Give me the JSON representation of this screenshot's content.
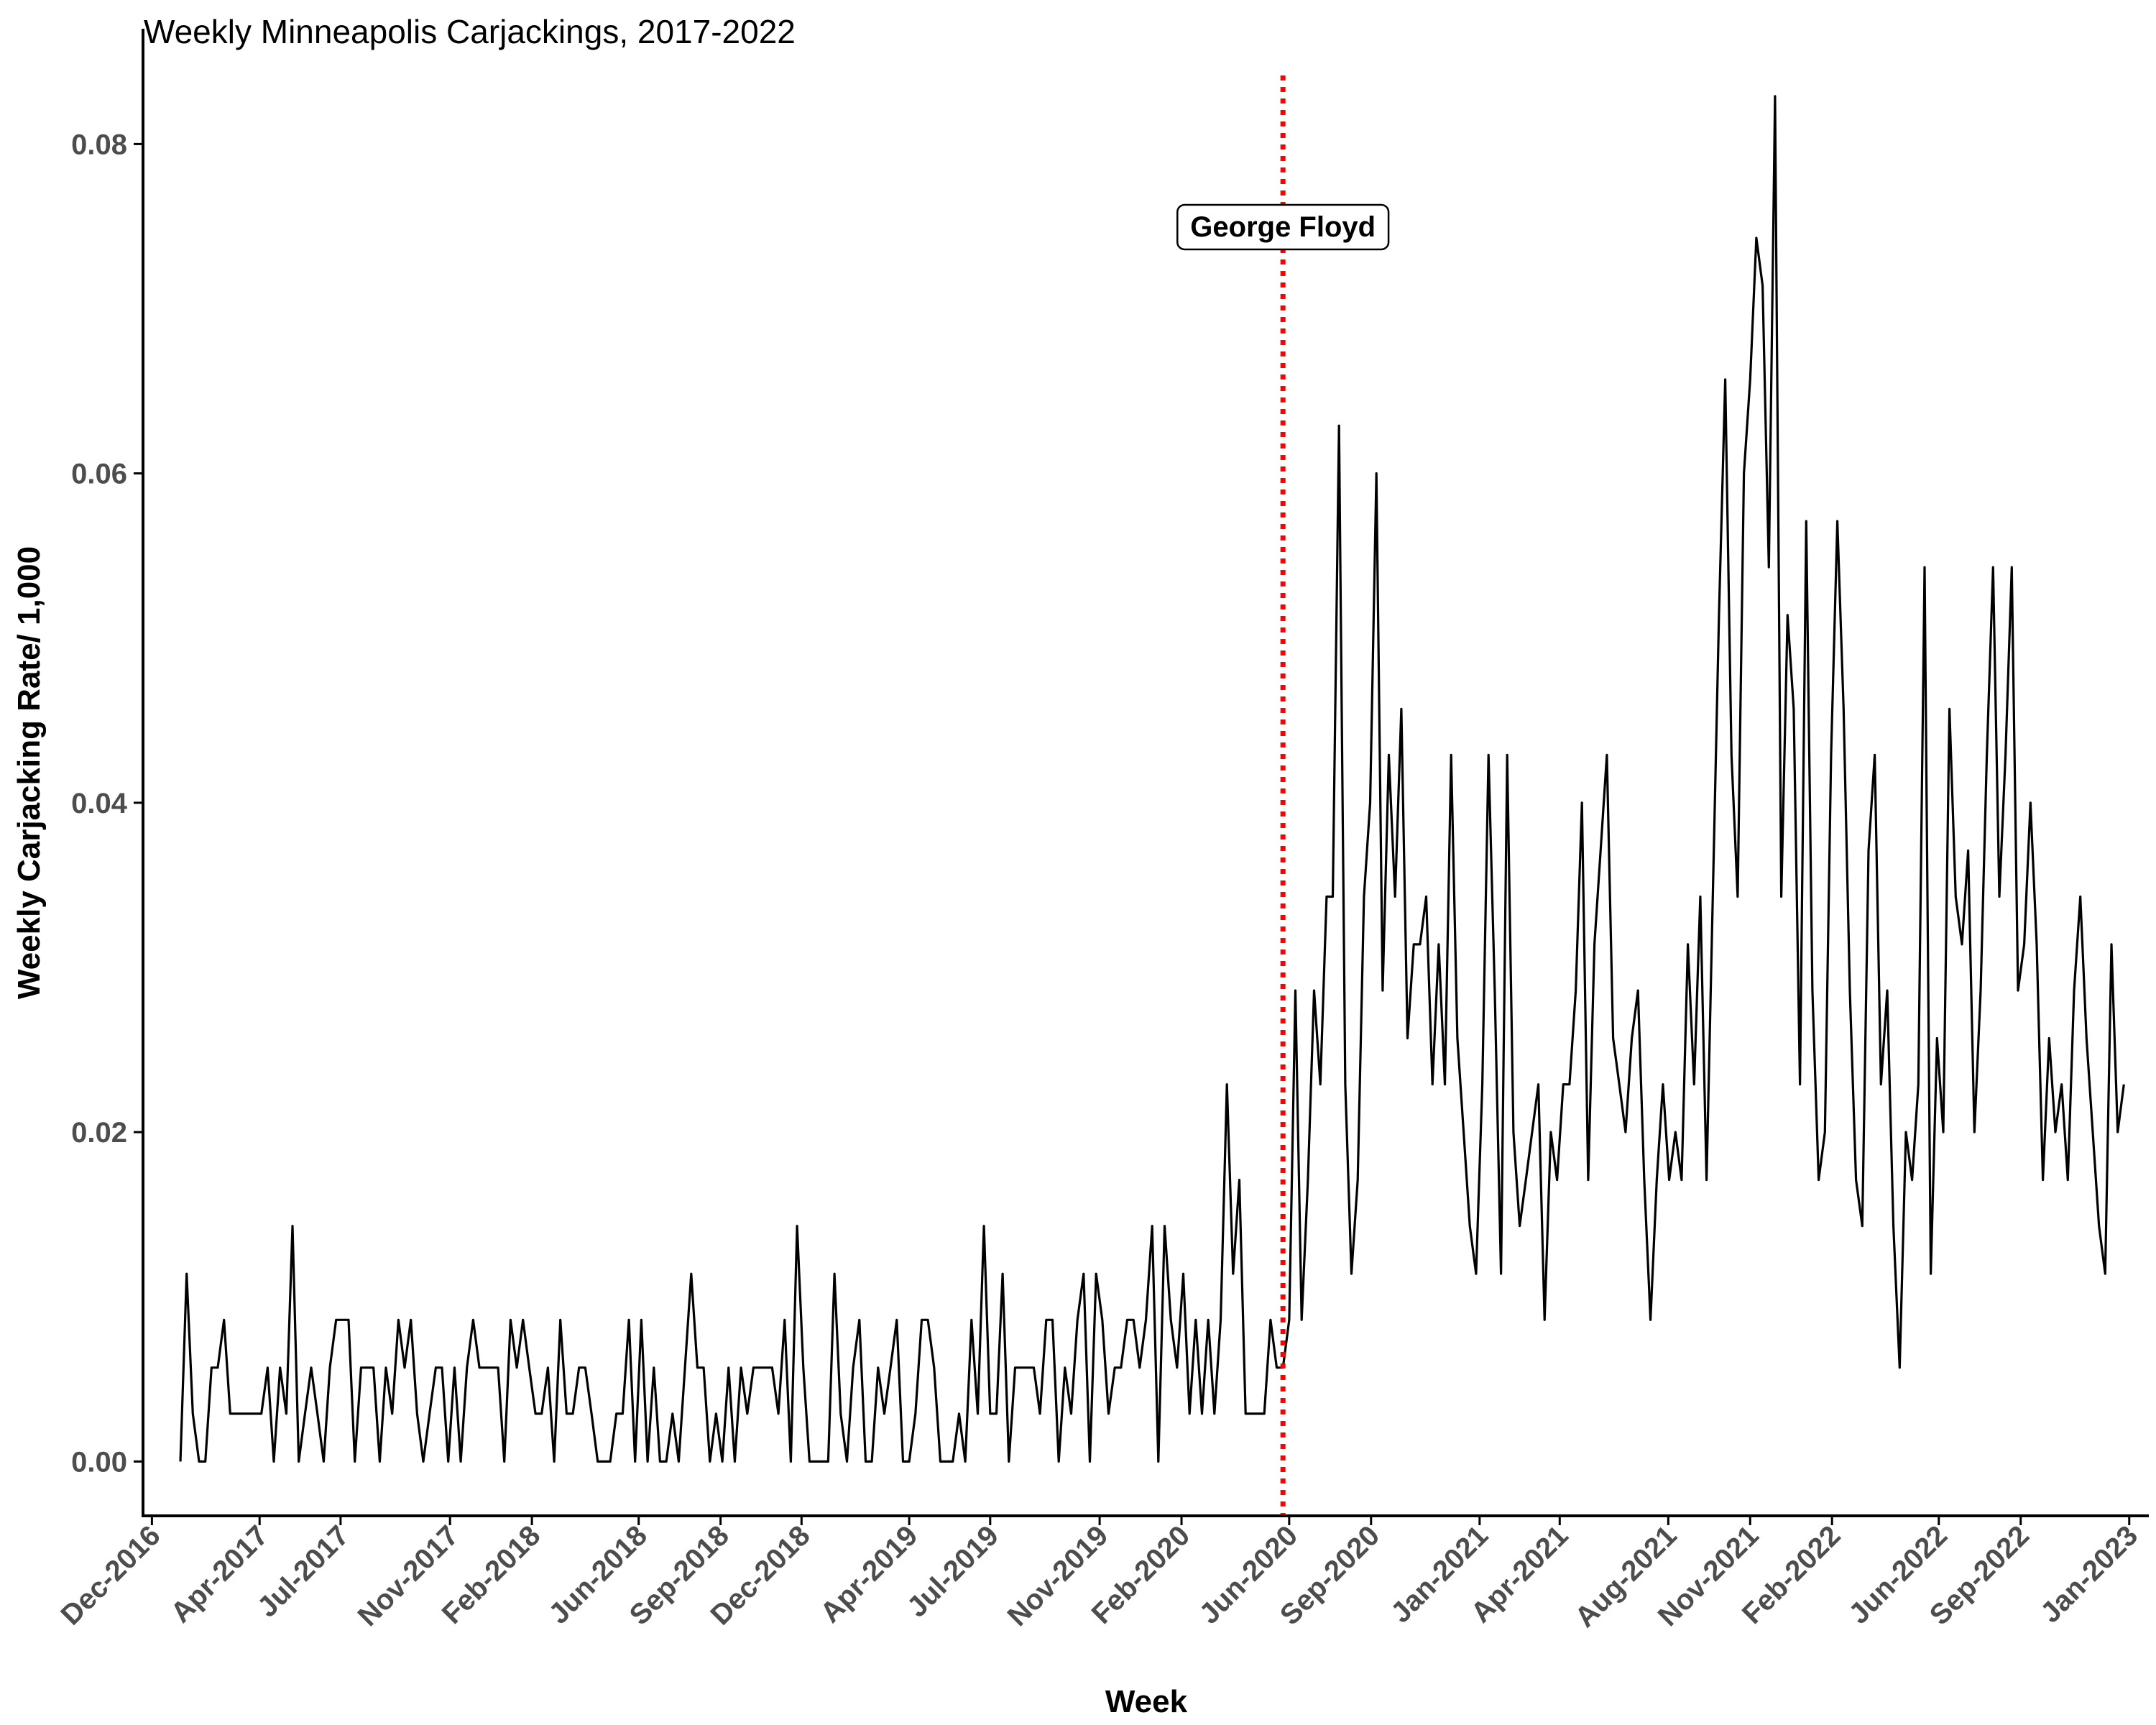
{
  "chart_data": {
    "type": "line",
    "title": "Weekly Minneapolis Carjackings, 2017-2022",
    "xlabel": "Week",
    "ylabel": "Weekly Carjacking Rate/ 1,000",
    "x_range": [
      "2016-11-21",
      "2023-01-23"
    ],
    "ylim": [
      -0.0033,
      0.087
    ],
    "y_ticks": [
      0.0,
      0.02,
      0.04,
      0.06,
      0.08
    ],
    "y_tick_labels": [
      "0.00",
      "0.02",
      "0.04",
      "0.06",
      "0.08"
    ],
    "x_ticks": [
      {
        "date": "2016-12-01",
        "label": "Dec-2016"
      },
      {
        "date": "2017-04-01",
        "label": "Apr-2017"
      },
      {
        "date": "2017-07-01",
        "label": "Jul-2017"
      },
      {
        "date": "2017-11-01",
        "label": "Nov-2017"
      },
      {
        "date": "2018-02-01",
        "label": "Feb-2018"
      },
      {
        "date": "2018-06-01",
        "label": "Jun-2018"
      },
      {
        "date": "2018-09-01",
        "label": "Sep-2018"
      },
      {
        "date": "2018-12-01",
        "label": "Dec-2018"
      },
      {
        "date": "2019-04-01",
        "label": "Apr-2019"
      },
      {
        "date": "2019-07-01",
        "label": "Jul-2019"
      },
      {
        "date": "2019-11-01",
        "label": "Nov-2019"
      },
      {
        "date": "2020-02-01",
        "label": "Feb-2020"
      },
      {
        "date": "2020-06-01",
        "label": "Jun-2020"
      },
      {
        "date": "2020-09-01",
        "label": "Sep-2020"
      },
      {
        "date": "2021-01-01",
        "label": "Jan-2021"
      },
      {
        "date": "2021-04-01",
        "label": "Apr-2021"
      },
      {
        "date": "2021-08-01",
        "label": "Aug-2021"
      },
      {
        "date": "2021-11-01",
        "label": "Nov-2021"
      },
      {
        "date": "2022-02-01",
        "label": "Feb-2022"
      },
      {
        "date": "2022-06-01",
        "label": "Jun-2022"
      },
      {
        "date": "2022-09-01",
        "label": "Sep-2022"
      },
      {
        "date": "2023-01-01",
        "label": "Jan-2023"
      }
    ],
    "grid": false,
    "legend": "none",
    "series": [
      {
        "color": "#000000",
        "start_date": "2017-01-02",
        "interval_days": 7,
        "values": [
          0.0,
          0.0114,
          0.0029,
          0.0,
          0.0,
          0.0057,
          0.0057,
          0.0086,
          0.0029,
          0.0029,
          0.0029,
          0.0029,
          0.0029,
          0.0029,
          0.0057,
          0.0,
          0.0057,
          0.0029,
          0.0143,
          0.0,
          0.0029,
          0.0057,
          0.0029,
          0.0,
          0.0057,
          0.0086,
          0.0086,
          0.0086,
          0.0,
          0.0057,
          0.0057,
          0.0057,
          0.0,
          0.0057,
          0.0029,
          0.0086,
          0.0057,
          0.0086,
          0.0029,
          0.0,
          0.0029,
          0.0057,
          0.0057,
          0.0,
          0.0057,
          0.0,
          0.0057,
          0.0086,
          0.0057,
          0.0057,
          0.0057,
          0.0057,
          0.0,
          0.0086,
          0.0057,
          0.0086,
          0.0057,
          0.0029,
          0.0029,
          0.0057,
          0.0,
          0.0086,
          0.0029,
          0.0029,
          0.0057,
          0.0057,
          0.0029,
          0.0,
          0.0,
          0.0,
          0.0029,
          0.0029,
          0.0086,
          0.0,
          0.0086,
          0.0,
          0.0057,
          0.0,
          0.0,
          0.0029,
          0.0,
          0.0057,
          0.0114,
          0.0057,
          0.0057,
          0.0,
          0.0029,
          0.0,
          0.0057,
          0.0,
          0.0057,
          0.0029,
          0.0057,
          0.0057,
          0.0057,
          0.0057,
          0.0029,
          0.0086,
          0.0,
          0.0143,
          0.0057,
          0.0,
          0.0,
          0.0,
          0.0,
          0.0114,
          0.0029,
          0.0,
          0.0057,
          0.0086,
          0.0,
          0.0,
          0.0057,
          0.0029,
          0.0057,
          0.0086,
          0.0,
          0.0,
          0.0029,
          0.0086,
          0.0086,
          0.0057,
          0.0,
          0.0,
          0.0,
          0.0029,
          0.0,
          0.0086,
          0.0029,
          0.0143,
          0.0029,
          0.0029,
          0.0114,
          0.0,
          0.0057,
          0.0057,
          0.0057,
          0.0057,
          0.0029,
          0.0086,
          0.0086,
          0.0,
          0.0057,
          0.0029,
          0.0086,
          0.0114,
          0.0,
          0.0114,
          0.0086,
          0.0029,
          0.0057,
          0.0057,
          0.0086,
          0.0086,
          0.0057,
          0.0086,
          0.0143,
          0.0,
          0.0143,
          0.0086,
          0.0057,
          0.0114,
          0.0029,
          0.0086,
          0.0029,
          0.0086,
          0.0029,
          0.0086,
          0.0229,
          0.0114,
          0.0171,
          0.0029,
          0.0029,
          0.0029,
          0.0029,
          0.0086,
          0.0057,
          0.0057,
          0.0086,
          0.0286,
          0.0086,
          0.0171,
          0.0286,
          0.0229,
          0.0343,
          0.0343,
          0.0629,
          0.0229,
          0.0114,
          0.0171,
          0.0343,
          0.04,
          0.06,
          0.0286,
          0.0429,
          0.0343,
          0.0457,
          0.0257,
          0.0314,
          0.0314,
          0.0343,
          0.0229,
          0.0314,
          0.0229,
          0.0429,
          0.0257,
          0.02,
          0.0143,
          0.0114,
          0.0229,
          0.0429,
          0.0286,
          0.0114,
          0.0429,
          0.02,
          0.0143,
          0.0171,
          0.02,
          0.0229,
          0.0086,
          0.02,
          0.0171,
          0.0229,
          0.0229,
          0.0286,
          0.04,
          0.0171,
          0.0314,
          0.0371,
          0.0429,
          0.0257,
          0.0229,
          0.02,
          0.0257,
          0.0286,
          0.0171,
          0.0086,
          0.0171,
          0.0229,
          0.0171,
          0.02,
          0.0171,
          0.0314,
          0.0229,
          0.0343,
          0.0171,
          0.0343,
          0.0514,
          0.0657,
          0.0429,
          0.0343,
          0.06,
          0.0657,
          0.0743,
          0.0714,
          0.0543,
          0.0829,
          0.0343,
          0.0514,
          0.0457,
          0.0229,
          0.0571,
          0.0286,
          0.0171,
          0.02,
          0.0429,
          0.0571,
          0.0457,
          0.0286,
          0.0171,
          0.0143,
          0.0371,
          0.0429,
          0.0229,
          0.0286,
          0.0143,
          0.0057,
          0.02,
          0.0171,
          0.0229,
          0.0543,
          0.0114,
          0.0257,
          0.02,
          0.0457,
          0.0343,
          0.0314,
          0.0371,
          0.02,
          0.0286,
          0.0429,
          0.0543,
          0.0343,
          0.0429,
          0.0543,
          0.0286,
          0.0314,
          0.04,
          0.0314,
          0.0171,
          0.0257,
          0.02,
          0.0229,
          0.0171,
          0.0286,
          0.0343,
          0.0257,
          0.02,
          0.0143,
          0.0114,
          0.0314,
          0.02,
          0.0229
        ]
      }
    ],
    "annotations": [
      {
        "type": "vline",
        "date": "2020-05-25",
        "color": "#ff0000",
        "style": "dotted",
        "label": "George Floyd",
        "label_y": 0.075
      }
    ]
  }
}
